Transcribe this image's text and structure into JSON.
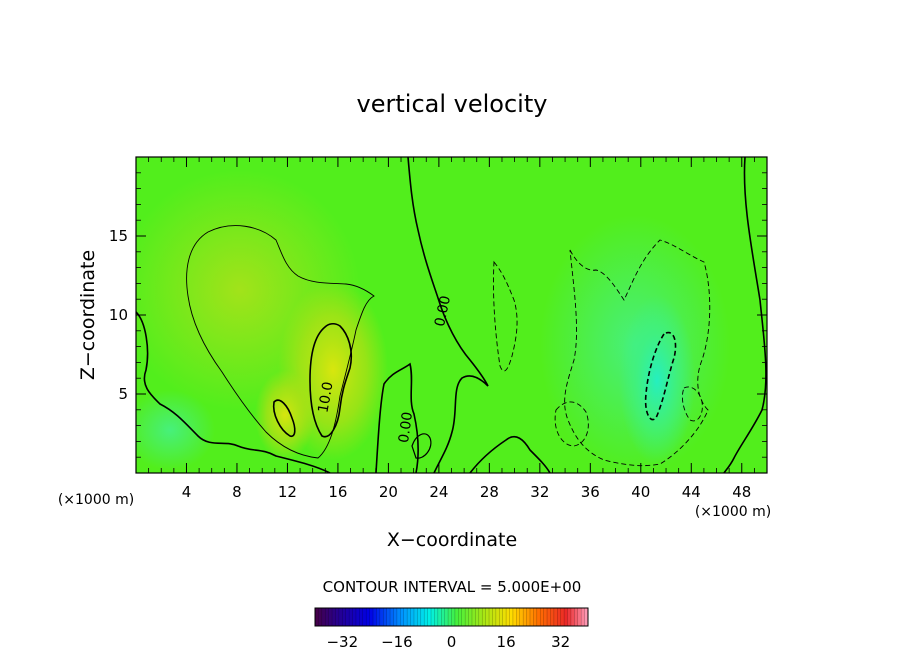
{
  "chart_data": {
    "type": "heatmap",
    "title": "vertical velocity",
    "xlabel": "X−coordinate",
    "ylabel": "Z−coordinate",
    "x_unit_left": "(×1000 m)",
    "x_unit_right": "(×1000 m)",
    "xlim": [
      0,
      50
    ],
    "ylim": [
      0,
      20
    ],
    "x_ticks": [
      4,
      8,
      12,
      16,
      20,
      24,
      28,
      32,
      36,
      40,
      44,
      48
    ],
    "x_tick_labels": [
      "4",
      "8",
      "12",
      "16",
      "20",
      "24",
      "28",
      "32",
      "36",
      "40",
      "44",
      "48"
    ],
    "y_ticks": [
      5,
      10,
      15
    ],
    "y_tick_labels": [
      "5",
      "10",
      "15"
    ],
    "contour_interval_text": "CONTOUR INTERVAL = 5.000E+00",
    "contour_labels": [
      {
        "text": "0.00",
        "x": 24.5,
        "y": 10.5
      },
      {
        "text": "10.0",
        "x": 15.5,
        "y": 4.8
      },
      {
        "text": "0.00",
        "x": 21.4,
        "y": 2.8
      }
    ],
    "features": [
      {
        "kind": "updraft-max",
        "x": 16,
        "y": 7,
        "value": 12
      },
      {
        "kind": "updraft",
        "x": 11,
        "y": 4,
        "value": 10
      },
      {
        "kind": "broad-updraft",
        "x": 8,
        "y": 12,
        "value": 6
      },
      {
        "kind": "downdraft-min",
        "x": 41.5,
        "y": 7,
        "value": -10
      },
      {
        "kind": "downdraft",
        "x": 38,
        "y": 11,
        "value": -5
      }
    ],
    "colorbar": {
      "min": -40,
      "max": 40,
      "tick_values": [
        -32,
        -16,
        0,
        16,
        32
      ],
      "tick_labels": [
        "−32",
        "−16",
        "0",
        "16",
        "32"
      ],
      "colormap": "rainbow (purple → blue → cyan → green → yellow → red → pink)"
    },
    "grid": false
  }
}
